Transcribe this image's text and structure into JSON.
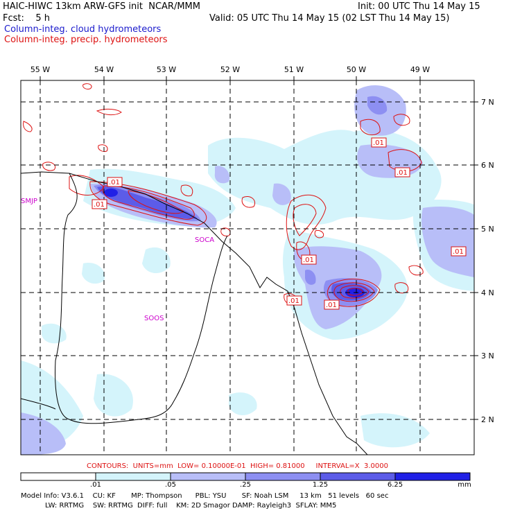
{
  "header": {
    "line1_left": "HAIC-HIWC 13km ARW-GFS init  NCAR/MMM",
    "line1_right": "Init: 00 UTC Thu 14 May 15",
    "line2_left": "Fcst:    5 h",
    "line2_right": "Valid: 05 UTC Thu 14 May 15 (02 LST Thu 14 May 15)",
    "line3": "Column-integ. cloud hydrometeors",
    "line4": "Column-integ. precip. hydrometeors"
  },
  "map": {
    "lon_labels": [
      "55 W",
      "54 W",
      "53 W",
      "52 W",
      "51 W",
      "50 W",
      "49 W"
    ],
    "lat_labels": [
      "7 N",
      "6 N",
      "5 N",
      "4 N",
      "3 N",
      "2 N"
    ],
    "places": [
      "SMJP",
      "SOCA",
      "SOOS"
    ],
    "contour_labels": [
      ".01",
      ".01",
      ".01",
      ".01",
      ".01",
      ".01",
      ".01",
      ".01"
    ],
    "contour_color": "#dd1111",
    "coast_color": "#000000"
  },
  "contours_note": "CONTOURS:  UNITS=mm  LOW= 0.10000E-01  HIGH= 0.81000     INTERVAL=X  3.0000",
  "colorbar": {
    "levels": [
      ".01",
      ".05",
      ".25",
      "1.25",
      "6.25"
    ],
    "unit": "mm",
    "colors": [
      "#ffffff",
      "#d4f4fb",
      "#b8bef8",
      "#8d8ff2",
      "#5c5ce8",
      "#2020e6"
    ]
  },
  "footer": {
    "line1": "Model Info: V3.6.1    CU: KF       MP: Thompson      PBL: YSU       SF: Noah LSM     13 km   51 levels   60 sec",
    "line2": "           LW: RRTMG    SW: RRTMG  DIFF: full    KM: 2D Smagor DAMP: Rayleigh3  SFLAY: MM5"
  }
}
